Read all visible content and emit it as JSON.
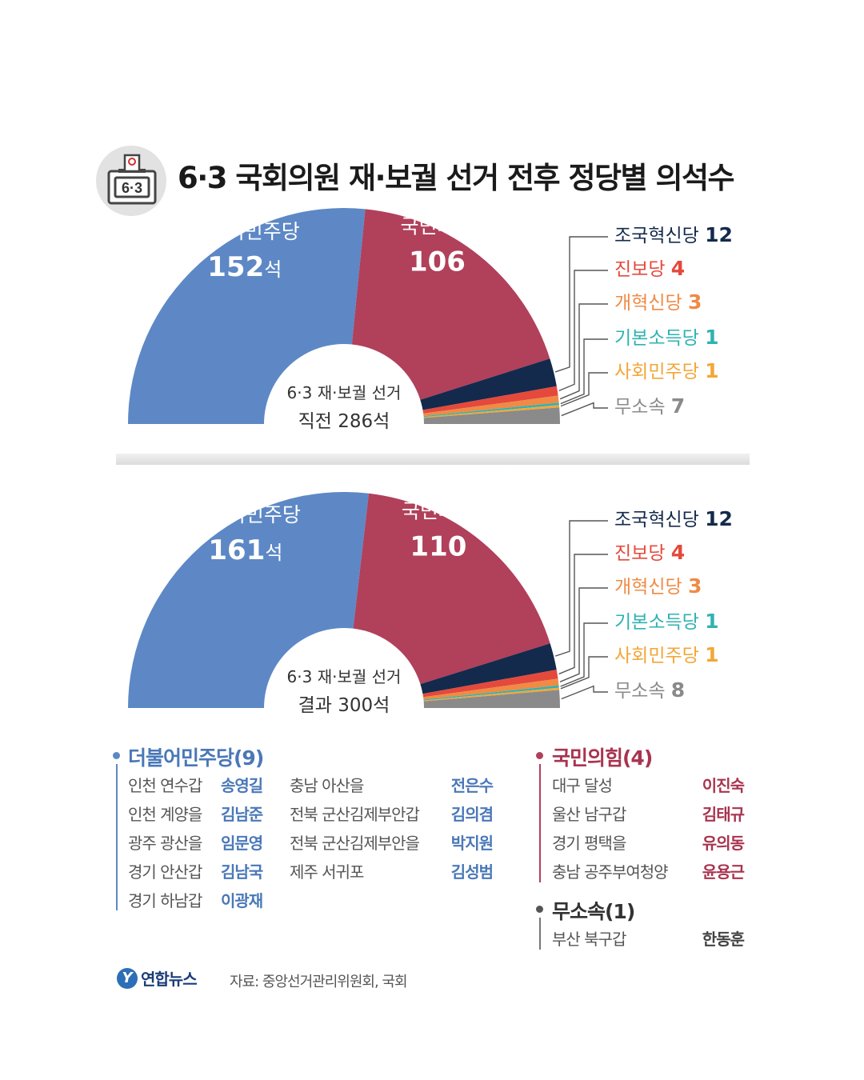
{
  "header": {
    "title": "6·3 국회의원 재·보궐 선거 전후 정당별 의석수",
    "icon_label": "6·3"
  },
  "colors": {
    "dem": "#5d88c5",
    "ppp": "#b1405b",
    "rebuild": "#142a4c",
    "progressive": "#e4493c",
    "reform": "#f08a45",
    "basicincome": "#2fb2b2",
    "socialdem": "#f3a637",
    "independent": "#8a8a8a"
  },
  "chart_data": [
    {
      "type": "pie",
      "subtype": "semicircle-parliament",
      "center_label": [
        "6·3 재·보궐 선거",
        "직전 286석"
      ],
      "total": 286,
      "series": [
        {
          "name": "더불어민주당",
          "value": 152,
          "label": "152",
          "unit": "석",
          "color_key": "dem"
        },
        {
          "name": "국민의힘",
          "value": 106,
          "label": "106",
          "unit": "",
          "color_key": "ppp"
        },
        {
          "name": "조국혁신당",
          "value": 12,
          "label": "12",
          "color_key": "rebuild"
        },
        {
          "name": "진보당",
          "value": 4,
          "label": "4",
          "color_key": "progressive"
        },
        {
          "name": "개혁신당",
          "value": 3,
          "label": "3",
          "color_key": "reform"
        },
        {
          "name": "기본소득당",
          "value": 1,
          "label": "1",
          "color_key": "basicincome"
        },
        {
          "name": "사회민주당",
          "value": 1,
          "label": "1",
          "color_key": "socialdem"
        },
        {
          "name": "무소속",
          "value": 7,
          "label": "7",
          "color_key": "independent"
        }
      ]
    },
    {
      "type": "pie",
      "subtype": "semicircle-parliament",
      "center_label": [
        "6·3 재·보궐 선거",
        "결과 300석"
      ],
      "total": 300,
      "series": [
        {
          "name": "더불어민주당",
          "value": 161,
          "label": "161",
          "unit": "석",
          "color_key": "dem"
        },
        {
          "name": "국민의힘",
          "value": 110,
          "label": "110",
          "unit": "",
          "color_key": "ppp"
        },
        {
          "name": "조국혁신당",
          "value": 12,
          "label": "12",
          "color_key": "rebuild"
        },
        {
          "name": "진보당",
          "value": 4,
          "label": "4",
          "color_key": "progressive"
        },
        {
          "name": "개혁신당",
          "value": 3,
          "label": "3",
          "color_key": "reform"
        },
        {
          "name": "기본소득당",
          "value": 1,
          "label": "1",
          "color_key": "basicincome"
        },
        {
          "name": "사회민주당",
          "value": 1,
          "label": "1",
          "color_key": "socialdem"
        },
        {
          "name": "무소속",
          "value": 8,
          "label": "8",
          "color_key": "independent"
        }
      ]
    }
  ],
  "winners": {
    "dem": {
      "title": "더불어민주당(9)",
      "rows": [
        {
          "district": "인천 연수갑",
          "name": "송영길"
        },
        {
          "district": "인천 계양을",
          "name": "김남준"
        },
        {
          "district": "광주 광산을",
          "name": "임문영"
        },
        {
          "district": "경기 안산갑",
          "name": "김남국"
        },
        {
          "district": "경기 하남갑",
          "name": "이광재"
        },
        {
          "district": "충남 아산을",
          "name": "전은수"
        },
        {
          "district": "전북 군산김제부안갑",
          "name": "김의겸"
        },
        {
          "district": "전북 군산김제부안을",
          "name": "박지원"
        },
        {
          "district": "제주 서귀포",
          "name": "김성범"
        }
      ]
    },
    "ppp": {
      "title": "국민의힘(4)",
      "rows": [
        {
          "district": "대구 달성",
          "name": "이진숙"
        },
        {
          "district": "울산 남구갑",
          "name": "김태규"
        },
        {
          "district": "경기 평택을",
          "name": "유의동"
        },
        {
          "district": "충남 공주부여청양",
          "name": "윤용근"
        }
      ]
    },
    "ind": {
      "title": "무소속(1)",
      "rows": [
        {
          "district": "부산 북구갑",
          "name": "한동훈"
        }
      ]
    }
  },
  "footer": {
    "logo_text": "연합뉴스",
    "logo_mark": "Y",
    "source": "자료: 중앙선거관리위원회, 국회"
  }
}
